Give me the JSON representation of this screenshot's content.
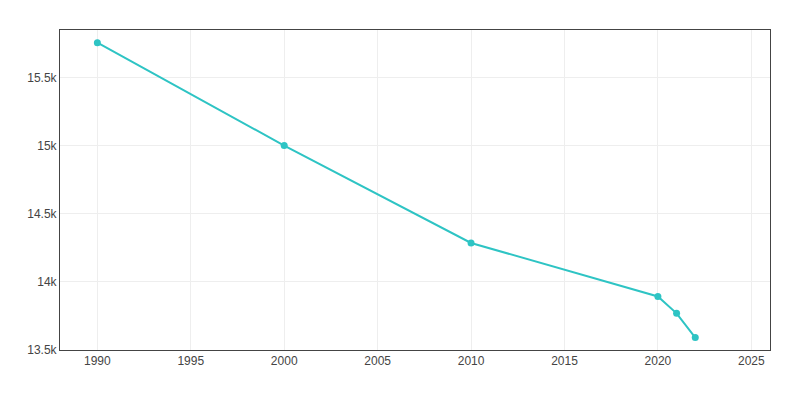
{
  "chart_data": {
    "type": "line",
    "x": [
      1990,
      2000,
      2010,
      2020,
      2021,
      2022
    ],
    "values": [
      15757,
      15001,
      14286,
      13893,
      13769,
      13591
    ],
    "color": "#2ec4c4",
    "marker": "circle",
    "xlim": [
      1988,
      2026
    ],
    "ylim": [
      13500,
      15850
    ],
    "xticks": [
      1990,
      1995,
      2000,
      2005,
      2010,
      2015,
      2020,
      2025
    ],
    "yticks": [
      {
        "value": 13500,
        "label": "13.5k"
      },
      {
        "value": 14000,
        "label": "14k"
      },
      {
        "value": 14500,
        "label": "14.5k"
      },
      {
        "value": 15000,
        "label": "15k"
      },
      {
        "value": 15500,
        "label": "15.5k"
      }
    ],
    "grid": true
  }
}
